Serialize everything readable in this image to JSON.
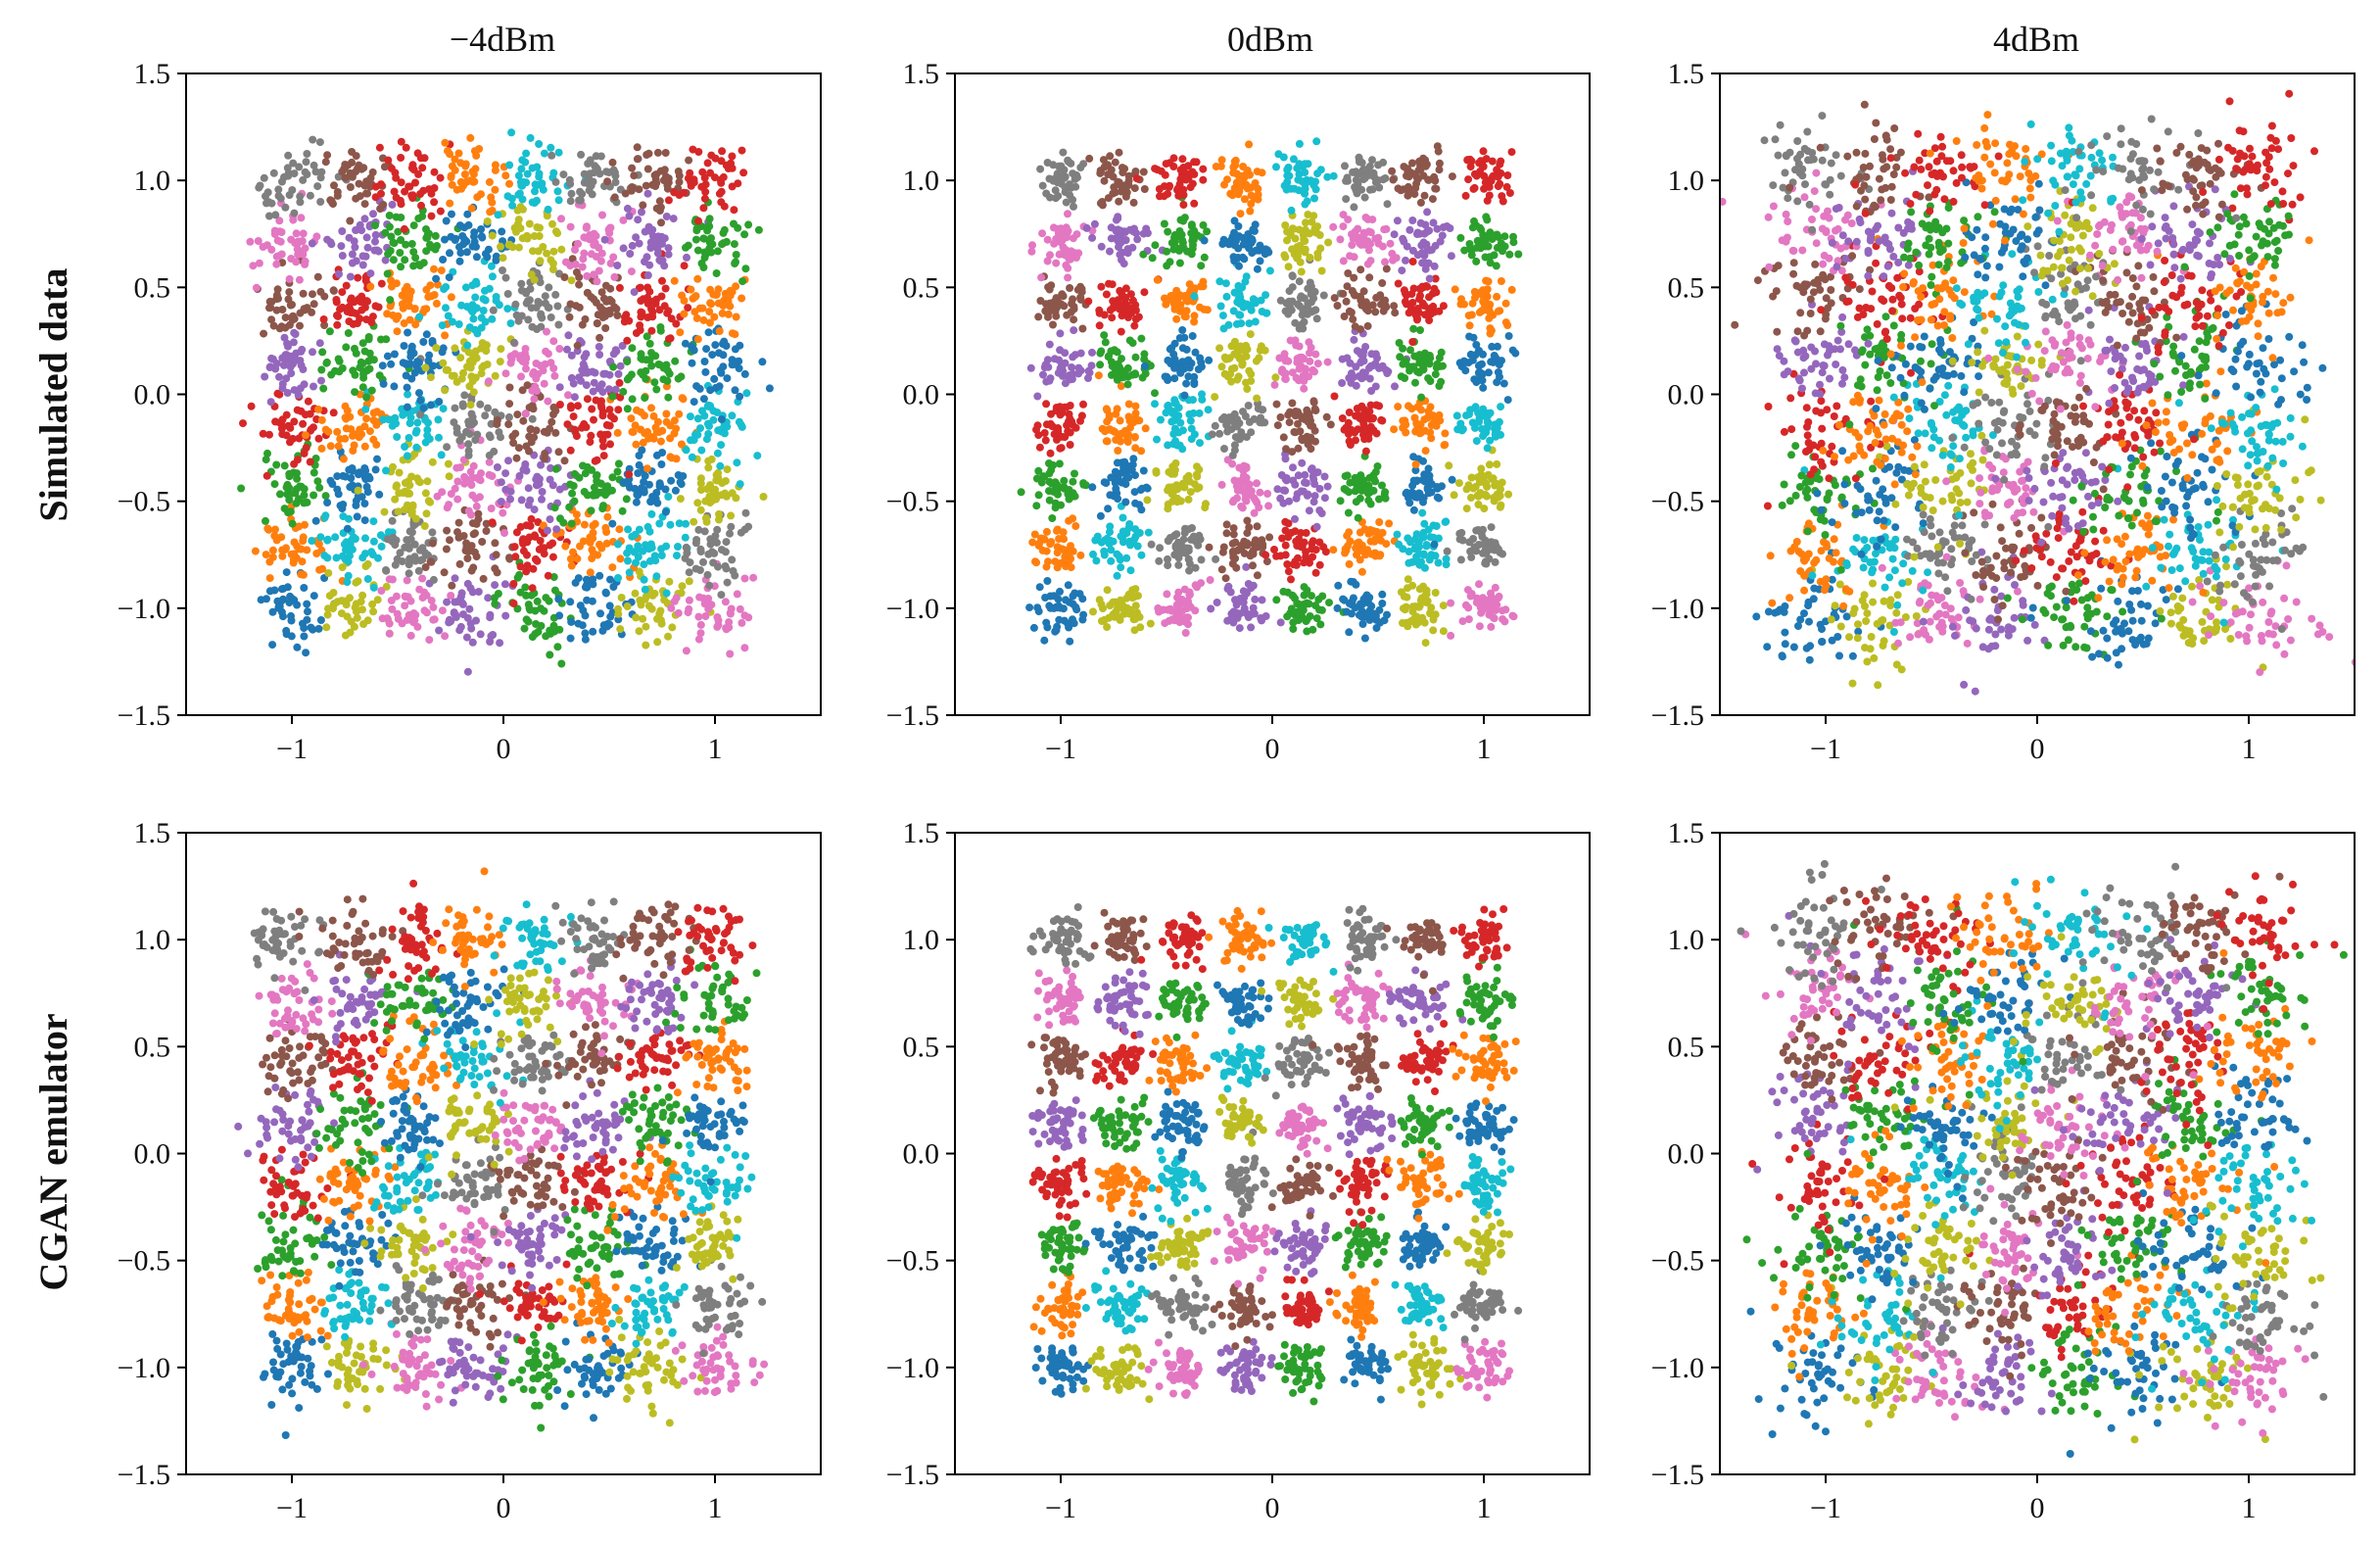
{
  "figure": {
    "column_titles": [
      "−4dBm",
      "0dBm",
      "4dBm"
    ],
    "row_labels": [
      "Simulated data",
      "CGAN emulator"
    ]
  },
  "palette": [
    "#1f77b4",
    "#ff7f0e",
    "#2ca02c",
    "#d62728",
    "#9467bd",
    "#8c564b",
    "#e377c2",
    "#7f7f7f",
    "#bcbd22",
    "#17becf"
  ],
  "symbol_colors": [
    [
      "tab:blue",
      "tab:olive",
      "tab:pink",
      "tab:purple",
      "tab:green",
      "tab:blue",
      "tab:olive",
      "tab:pink"
    ],
    [
      "tab:orange",
      "tab:cyan",
      "tab:gray",
      "tab:brown",
      "tab:red",
      "tab:orange",
      "tab:cyan",
      "tab:gray"
    ],
    [
      "tab:green",
      "tab:blue",
      "tab:olive",
      "tab:pink",
      "tab:purple",
      "tab:green",
      "tab:blue",
      "tab:olive"
    ],
    [
      "tab:red",
      "tab:orange",
      "tab:cyan",
      "tab:gray",
      "tab:brown",
      "tab:red",
      "tab:orange",
      "tab:cyan"
    ],
    [
      "tab:purple",
      "tab:green",
      "tab:blue",
      "tab:olive",
      "tab:pink",
      "tab:purple",
      "tab:green",
      "tab:blue"
    ],
    [
      "tab:brown",
      "tab:red",
      "tab:orange",
      "tab:cyan",
      "tab:gray",
      "tab:brown",
      "tab:red",
      "tab:orange"
    ],
    [
      "tab:pink",
      "tab:purple",
      "tab:green",
      "tab:blue",
      "tab:olive",
      "tab:pink",
      "tab:purple",
      "tab:green"
    ],
    [
      "tab:gray",
      "tab:brown",
      "tab:red",
      "tab:orange",
      "tab:cyan",
      "tab:gray",
      "tab:brown",
      "tab:red"
    ]
  ],
  "chart_data": [
    {
      "type": "scatter",
      "title": "−4dBm",
      "row": "Simulated data",
      "power_dbm": -4,
      "constellation": "64-QAM",
      "grid_levels": [
        -1.0,
        -0.71,
        -0.43,
        -0.14,
        0.14,
        0.43,
        0.71,
        1.0
      ],
      "cluster_spread": 0.085,
      "outlier_spread": 0.0,
      "distortion": 0.0,
      "xlim": [
        -1.5,
        1.5
      ],
      "ylim": [
        -1.5,
        1.5
      ],
      "xticks": [
        -1,
        0,
        1
      ],
      "xtick_labels": [
        "−1",
        "0",
        "1"
      ],
      "yticks": [
        -1.5,
        -1.0,
        -0.5,
        0.0,
        0.5,
        1.0,
        1.5
      ],
      "ytick_labels": [
        "−1.5",
        "−1.0",
        "−0.5",
        "0.0",
        "0.5",
        "1.0",
        "1.5"
      ],
      "grid": false,
      "legend": "none"
    },
    {
      "type": "scatter",
      "title": "0dBm",
      "row": "Simulated data",
      "power_dbm": 0,
      "constellation": "64-QAM",
      "grid_levels": [
        -1.0,
        -0.71,
        -0.43,
        -0.14,
        0.14,
        0.43,
        0.71,
        1.0
      ],
      "cluster_spread": 0.06,
      "outlier_spread": 0.0,
      "distortion": 0.0,
      "xlim": [
        -1.5,
        1.5
      ],
      "ylim": [
        -1.5,
        1.5
      ],
      "xticks": [
        -1,
        0,
        1
      ],
      "xtick_labels": [
        "−1",
        "0",
        "1"
      ],
      "yticks": [
        -1.5,
        -1.0,
        -0.5,
        0.0,
        0.5,
        1.0,
        1.5
      ],
      "ytick_labels": [
        "−1.5",
        "−1.0",
        "−0.5",
        "0.0",
        "0.5",
        "1.0",
        "1.5"
      ],
      "grid": false,
      "legend": "none"
    },
    {
      "type": "scatter",
      "title": "4dBm",
      "row": "Simulated data",
      "power_dbm": 4,
      "constellation": "64-QAM",
      "grid_levels": [
        -1.0,
        -0.71,
        -0.43,
        -0.14,
        0.14,
        0.43,
        0.71,
        1.0
      ],
      "cluster_spread": 0.1,
      "outlier_spread": 0.2,
      "distortion": 0.06,
      "xlim": [
        -1.5,
        1.5
      ],
      "ylim": [
        -1.5,
        1.5
      ],
      "xticks": [
        -1,
        0,
        1
      ],
      "xtick_labels": [
        "−1",
        "0",
        "1"
      ],
      "yticks": [
        -1.5,
        -1.0,
        -0.5,
        0.0,
        0.5,
        1.0,
        1.5
      ],
      "ytick_labels": [
        "−1.5",
        "−1.0",
        "−0.5",
        "0.0",
        "0.5",
        "1.0",
        "1.5"
      ],
      "grid": false,
      "legend": "none"
    },
    {
      "type": "scatter",
      "title": "−4dBm",
      "row": "CGAN emulator",
      "power_dbm": -4,
      "constellation": "64-QAM",
      "grid_levels": [
        -1.0,
        -0.71,
        -0.43,
        -0.14,
        0.14,
        0.43,
        0.71,
        1.0
      ],
      "cluster_spread": 0.085,
      "outlier_spread": 0.0,
      "distortion": 0.0,
      "xlim": [
        -1.5,
        1.5
      ],
      "ylim": [
        -1.5,
        1.5
      ],
      "xticks": [
        -1,
        0,
        1
      ],
      "xtick_labels": [
        "−1",
        "0",
        "1"
      ],
      "yticks": [
        -1.5,
        -1.0,
        -0.5,
        0.0,
        0.5,
        1.0,
        1.5
      ],
      "ytick_labels": [
        "−1.5",
        "−1.0",
        "−0.5",
        "0.0",
        "0.5",
        "1.0",
        "1.5"
      ],
      "grid": false,
      "legend": "none"
    },
    {
      "type": "scatter",
      "title": "0dBm",
      "row": "CGAN emulator",
      "power_dbm": 0,
      "constellation": "64-QAM",
      "grid_levels": [
        -1.0,
        -0.71,
        -0.43,
        -0.14,
        0.14,
        0.43,
        0.71,
        1.0
      ],
      "cluster_spread": 0.06,
      "outlier_spread": 0.0,
      "distortion": 0.0,
      "xlim": [
        -1.5,
        1.5
      ],
      "ylim": [
        -1.5,
        1.5
      ],
      "xticks": [
        -1,
        0,
        1
      ],
      "xtick_labels": [
        "−1",
        "0",
        "1"
      ],
      "yticks": [
        -1.5,
        -1.0,
        -0.5,
        0.0,
        0.5,
        1.0,
        1.5
      ],
      "ytick_labels": [
        "−1.5",
        "−1.0",
        "−0.5",
        "0.0",
        "0.5",
        "1.0",
        "1.5"
      ],
      "grid": false,
      "legend": "none"
    },
    {
      "type": "scatter",
      "title": "4dBm",
      "row": "CGAN emulator",
      "power_dbm": 4,
      "constellation": "64-QAM",
      "grid_levels": [
        -1.0,
        -0.71,
        -0.43,
        -0.14,
        0.14,
        0.43,
        0.71,
        1.0
      ],
      "cluster_spread": 0.1,
      "outlier_spread": 0.2,
      "distortion": 0.06,
      "xlim": [
        -1.5,
        1.5
      ],
      "ylim": [
        -1.5,
        1.5
      ],
      "xticks": [
        -1,
        0,
        1
      ],
      "xtick_labels": [
        "−1",
        "0",
        "1"
      ],
      "yticks": [
        -1.5,
        -1.0,
        -0.5,
        0.0,
        0.5,
        1.0,
        1.5
      ],
      "ytick_labels": [
        "−1.5",
        "−1.0",
        "−0.5",
        "0.0",
        "0.5",
        "1.0",
        "1.5"
      ],
      "grid": false,
      "legend": "none"
    }
  ]
}
